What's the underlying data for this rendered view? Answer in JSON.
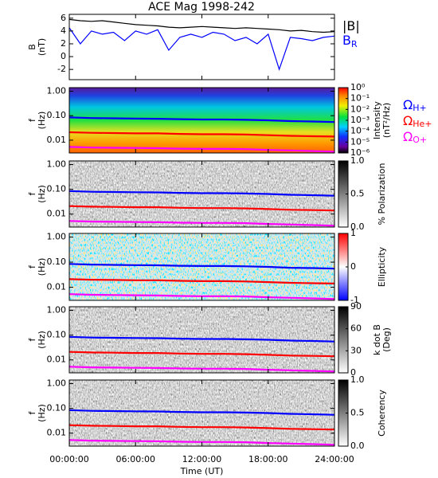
{
  "chart_data": [
    {
      "type": "line",
      "title": "ACE Mag 1998-242",
      "ylabel": [
        "B",
        "(nT)"
      ],
      "ylim": [
        -3.6,
        6.6
      ],
      "yticks": [
        -2,
        0,
        2,
        4,
        6
      ],
      "xlim": [
        0,
        24
      ],
      "xticks": [
        0,
        6,
        12,
        18,
        24
      ],
      "x": [
        0,
        1,
        2,
        3,
        4,
        5,
        6,
        7,
        8,
        9,
        10,
        11,
        12,
        13,
        14,
        15,
        16,
        17,
        18,
        19,
        20,
        21,
        22,
        23,
        24
      ],
      "series": [
        {
          "name": "|B|",
          "color": "#000000",
          "values": [
            5.8,
            5.6,
            5.5,
            5.6,
            5.4,
            5.2,
            5.0,
            4.9,
            4.8,
            4.6,
            4.5,
            4.6,
            4.7,
            4.6,
            4.5,
            4.4,
            4.5,
            4.4,
            4.3,
            4.2,
            4.0,
            4.1,
            3.9,
            3.8,
            3.9
          ]
        },
        {
          "name": "B",
          "subscript": "R",
          "color": "#0000ff",
          "values": [
            4.5,
            2.0,
            4.0,
            3.5,
            3.8,
            2.5,
            4.0,
            3.5,
            4.2,
            1.0,
            3.0,
            3.5,
            3.0,
            3.8,
            3.5,
            2.5,
            3.0,
            2.0,
            3.5,
            -2.0,
            3.0,
            2.8,
            2.5,
            3.0,
            3.2
          ]
        }
      ]
    },
    {
      "type": "spectrogram",
      "ylabel": [
        "f",
        "(Hz)"
      ],
      "log_y": true,
      "ylim": [
        0.003,
        1.4
      ],
      "yticks": [
        {
          "value": 1,
          "label": "1.00"
        },
        {
          "value": 0.1,
          "label": "0.10"
        },
        {
          "value": 0.01,
          "label": "0.01"
        }
      ],
      "xlim": [
        0,
        24
      ],
      "xticks": [
        0,
        6,
        12,
        18,
        24
      ],
      "colormap": "rainbow",
      "colorbar": {
        "label": [
          "Intensity",
          "(nT²/Hz)"
        ],
        "log": true,
        "lim": [
          1e-06,
          1
        ],
        "ticks": [
          {
            "value": 1,
            "label": "10⁰"
          },
          {
            "value": 0.1,
            "label": "10⁻¹"
          },
          {
            "value": 0.01,
            "label": "10⁻²"
          },
          {
            "value": 0.001,
            "label": "10⁻³"
          },
          {
            "value": 0.0001,
            "label": "10⁻⁴"
          },
          {
            "value": 1e-05,
            "label": "10⁻⁵"
          },
          {
            "value": 1e-06,
            "label": "10⁻⁶"
          }
        ]
      },
      "x": [
        0,
        2,
        4,
        6,
        8,
        10,
        12,
        14,
        16,
        18,
        20,
        22,
        24
      ],
      "series": [
        {
          "name": "Ω",
          "subscript": "H+",
          "color": "#0000ff",
          "values": [
            0.085,
            0.08,
            0.078,
            0.076,
            0.075,
            0.072,
            0.07,
            0.07,
            0.068,
            0.065,
            0.06,
            0.058,
            0.055
          ]
        },
        {
          "name": "Ω",
          "subscript": "He+",
          "color": "#ff0000",
          "values": [
            0.021,
            0.02,
            0.0195,
            0.019,
            0.019,
            0.018,
            0.0175,
            0.0175,
            0.017,
            0.016,
            0.015,
            0.0145,
            0.014
          ]
        },
        {
          "name": "Ω",
          "subscript": "O+",
          "color": "#ff00ff",
          "values": [
            0.0053,
            0.005,
            0.0049,
            0.0048,
            0.0047,
            0.0045,
            0.0044,
            0.0044,
            0.0043,
            0.004,
            0.0038,
            0.0036,
            0.0034
          ]
        }
      ]
    },
    {
      "type": "spectrogram",
      "ylabel": [
        "f",
        "(Hz)"
      ],
      "log_y": true,
      "ylim": [
        0.003,
        1.4
      ],
      "yticks": [
        {
          "value": 1,
          "label": "1.00"
        },
        {
          "value": 0.1,
          "label": "0.10"
        },
        {
          "value": 0.01,
          "label": "0.01"
        }
      ],
      "xlim": [
        0,
        24
      ],
      "xticks": [
        0,
        6,
        12,
        18,
        24
      ],
      "colormap": "greys",
      "colorbar": {
        "label": [
          "% Polarization"
        ],
        "lim": [
          0,
          1
        ],
        "ticks": [
          {
            "value": 0,
            "label": "0.0"
          },
          {
            "value": 0.5,
            "label": "0.5"
          },
          {
            "value": 1,
            "label": "1.0"
          }
        ]
      },
      "x": [
        0,
        2,
        4,
        6,
        8,
        10,
        12,
        14,
        16,
        18,
        20,
        22,
        24
      ],
      "series": [
        {
          "color": "#0000ff",
          "values": [
            0.085,
            0.08,
            0.078,
            0.076,
            0.075,
            0.072,
            0.07,
            0.07,
            0.068,
            0.065,
            0.06,
            0.058,
            0.055
          ]
        },
        {
          "color": "#ff0000",
          "values": [
            0.021,
            0.02,
            0.0195,
            0.019,
            0.019,
            0.018,
            0.0175,
            0.0175,
            0.017,
            0.016,
            0.015,
            0.0145,
            0.014
          ]
        },
        {
          "color": "#ff00ff",
          "values": [
            0.0053,
            0.005,
            0.0049,
            0.0048,
            0.0047,
            0.0045,
            0.0044,
            0.0044,
            0.0043,
            0.004,
            0.0038,
            0.0036,
            0.0034
          ]
        }
      ]
    },
    {
      "type": "spectrogram",
      "ylabel": [
        "f",
        "(Hz)"
      ],
      "log_y": true,
      "ylim": [
        0.003,
        1.4
      ],
      "yticks": [
        {
          "value": 1,
          "label": "1.00"
        },
        {
          "value": 0.1,
          "label": "0.10"
        },
        {
          "value": 0.01,
          "label": "0.01"
        }
      ],
      "xlim": [
        0,
        24
      ],
      "xticks": [
        0,
        6,
        12,
        18,
        24
      ],
      "colormap": "bwr",
      "colorbar": {
        "label": [
          "Ellipticity"
        ],
        "lim": [
          -1,
          1
        ],
        "ticks": [
          1,
          0,
          -1
        ]
      },
      "x": [
        0,
        2,
        4,
        6,
        8,
        10,
        12,
        14,
        16,
        18,
        20,
        22,
        24
      ],
      "series": [
        {
          "color": "#0000ff",
          "values": [
            0.085,
            0.08,
            0.078,
            0.076,
            0.075,
            0.072,
            0.07,
            0.07,
            0.068,
            0.065,
            0.06,
            0.058,
            0.055
          ]
        },
        {
          "color": "#ff0000",
          "values": [
            0.021,
            0.02,
            0.0195,
            0.019,
            0.019,
            0.018,
            0.0175,
            0.0175,
            0.017,
            0.016,
            0.015,
            0.0145,
            0.014
          ]
        },
        {
          "color": "#ff00ff",
          "values": [
            0.0053,
            0.005,
            0.0049,
            0.0048,
            0.0047,
            0.0045,
            0.0044,
            0.0044,
            0.0043,
            0.004,
            0.0038,
            0.0036,
            0.0034
          ]
        }
      ]
    },
    {
      "type": "spectrogram",
      "ylabel": [
        "f",
        "(Hz)"
      ],
      "log_y": true,
      "ylim": [
        0.003,
        1.4
      ],
      "yticks": [
        {
          "value": 1,
          "label": "1.00"
        },
        {
          "value": 0.1,
          "label": "0.10"
        },
        {
          "value": 0.01,
          "label": "0.01"
        }
      ],
      "xlim": [
        0,
        24
      ],
      "xticks": [
        0,
        6,
        12,
        18,
        24
      ],
      "colormap": "greys",
      "colorbar": {
        "label": [
          "k dot B",
          "(Deg)"
        ],
        "lim": [
          0,
          90
        ],
        "ticks": [
          90,
          60,
          30,
          0
        ]
      },
      "x": [
        0,
        2,
        4,
        6,
        8,
        10,
        12,
        14,
        16,
        18,
        20,
        22,
        24
      ],
      "series": [
        {
          "color": "#0000ff",
          "values": [
            0.085,
            0.08,
            0.078,
            0.076,
            0.075,
            0.072,
            0.07,
            0.07,
            0.068,
            0.065,
            0.06,
            0.058,
            0.055
          ]
        },
        {
          "color": "#ff0000",
          "values": [
            0.021,
            0.02,
            0.0195,
            0.019,
            0.019,
            0.018,
            0.0175,
            0.0175,
            0.017,
            0.016,
            0.015,
            0.0145,
            0.014
          ]
        },
        {
          "color": "#ff00ff",
          "values": [
            0.0053,
            0.005,
            0.0049,
            0.0048,
            0.0047,
            0.0045,
            0.0044,
            0.0044,
            0.0043,
            0.004,
            0.0038,
            0.0036,
            0.0034
          ]
        }
      ]
    },
    {
      "type": "spectrogram",
      "ylabel": [
        "f",
        "(Hz)"
      ],
      "log_y": true,
      "ylim": [
        0.003,
        1.4
      ],
      "yticks": [
        {
          "value": 1,
          "label": "1.00"
        },
        {
          "value": 0.1,
          "label": "0.10"
        },
        {
          "value": 0.01,
          "label": "0.01"
        }
      ],
      "xlim": [
        0,
        24
      ],
      "xlabel": "Time (UT)",
      "xticks": [
        {
          "value": 0,
          "label": "00:00:00"
        },
        {
          "value": 6,
          "label": "06:00:00"
        },
        {
          "value": 12,
          "label": "12:00:00"
        },
        {
          "value": 18,
          "label": "18:00:00"
        },
        {
          "value": 24,
          "label": "24:00:00"
        }
      ],
      "colormap": "greys",
      "colorbar": {
        "label": [
          "Coherency"
        ],
        "lim": [
          0,
          1
        ],
        "ticks": [
          {
            "value": 0,
            "label": "0.0"
          },
          {
            "value": 0.5,
            "label": "0.5"
          },
          {
            "value": 1,
            "label": "1.0"
          }
        ]
      },
      "x": [
        0,
        2,
        4,
        6,
        8,
        10,
        12,
        14,
        16,
        18,
        20,
        22,
        24
      ],
      "series": [
        {
          "color": "#0000ff",
          "values": [
            0.085,
            0.08,
            0.078,
            0.076,
            0.075,
            0.072,
            0.07,
            0.07,
            0.068,
            0.065,
            0.06,
            0.058,
            0.055
          ]
        },
        {
          "color": "#ff0000",
          "values": [
            0.021,
            0.02,
            0.0195,
            0.019,
            0.019,
            0.018,
            0.0175,
            0.0175,
            0.017,
            0.016,
            0.015,
            0.0145,
            0.014
          ]
        },
        {
          "color": "#ff00ff",
          "values": [
            0.0053,
            0.005,
            0.0049,
            0.0048,
            0.0047,
            0.0045,
            0.0044,
            0.0044,
            0.0043,
            0.004,
            0.0038,
            0.0036,
            0.0034
          ]
        }
      ]
    }
  ]
}
